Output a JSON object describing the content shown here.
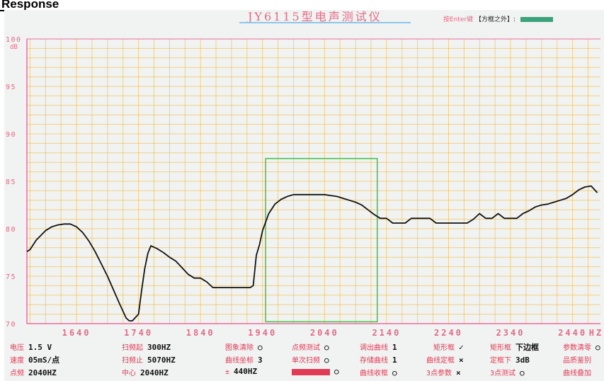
{
  "page_label": "Response",
  "instrument": {
    "title": "JY6115型电声测试仪",
    "status_hint": "按Enter键",
    "status_text": "【方框之外】:"
  },
  "chart_data": {
    "type": "line",
    "x_ticks": [
      "1640",
      "1740",
      "1840",
      "1940",
      "2040",
      "2140",
      "2240",
      "2340",
      "2440",
      "HZ"
    ],
    "y_ticks": [
      "100",
      "95",
      "90",
      "85",
      "80",
      "75",
      "70"
    ],
    "y_unit": "dB",
    "xlim": [
      1560,
      2485
    ],
    "ylim": [
      70,
      100
    ],
    "grid": true,
    "series": [
      {
        "color": "#111111",
        "x": [
          1560,
          1565,
          1575,
          1590,
          1600,
          1610,
          1620,
          1630,
          1640,
          1650,
          1660,
          1670,
          1680,
          1690,
          1700,
          1710,
          1720,
          1725,
          1730,
          1740,
          1745,
          1750,
          1755,
          1760,
          1770,
          1780,
          1790,
          1800,
          1810,
          1820,
          1830,
          1840,
          1850,
          1860,
          1870,
          1880,
          1890,
          1900,
          1910,
          1920,
          1925,
          1930,
          1935,
          1940,
          1950,
          1960,
          1970,
          1980,
          1990,
          2000,
          2010,
          2020,
          2030,
          2040,
          2050,
          2060,
          2070,
          2080,
          2090,
          2100,
          2110,
          2120,
          2130,
          2140,
          2150,
          2160,
          2170,
          2180,
          2190,
          2200,
          2210,
          2220,
          2230,
          2240,
          2250,
          2260,
          2270,
          2280,
          2290,
          2300,
          2310,
          2320,
          2330,
          2340,
          2350,
          2360,
          2370,
          2380,
          2390,
          2400,
          2410,
          2420,
          2430,
          2440,
          2450,
          2460,
          2470,
          2480
        ],
        "y": [
          77.6,
          77.8,
          78.8,
          79.8,
          80.2,
          80.4,
          80.5,
          80.5,
          80.2,
          79.6,
          78.7,
          77.6,
          76.3,
          75.0,
          73.5,
          72.0,
          70.6,
          70.3,
          70.3,
          71.0,
          73.5,
          75.8,
          77.4,
          78.2,
          77.9,
          77.5,
          77.0,
          76.6,
          75.9,
          75.2,
          74.8,
          74.8,
          74.4,
          73.8,
          73.8,
          73.8,
          73.8,
          73.8,
          73.8,
          73.8,
          74.0,
          77.2,
          78.3,
          79.8,
          81.6,
          82.6,
          83.1,
          83.4,
          83.6,
          83.6,
          83.6,
          83.6,
          83.6,
          83.6,
          83.5,
          83.4,
          83.2,
          83.0,
          82.8,
          82.5,
          82.0,
          81.5,
          81.1,
          81.1,
          80.6,
          80.6,
          80.6,
          81.1,
          81.1,
          81.1,
          81.1,
          80.6,
          80.6,
          80.6,
          80.6,
          80.6,
          80.6,
          81.0,
          81.6,
          81.1,
          81.1,
          81.6,
          81.1,
          81.1,
          81.1,
          81.6,
          81.9,
          82.3,
          82.5,
          82.6,
          82.8,
          83.0,
          83.2,
          83.6,
          84.1,
          84.4,
          84.5,
          83.8
        ]
      }
    ],
    "marker_box": {
      "x1": 1945,
      "x2": 2125,
      "y1": 70.2,
      "y2": 87.4
    }
  },
  "params": [
    [
      {
        "label": "电压",
        "value": "1.5 V"
      },
      {
        "label": "扫频起",
        "value": "300HZ"
      },
      {
        "label": "图象清除",
        "value": "○"
      },
      {
        "label": "点频测试",
        "value": "○"
      },
      {
        "label": "调出曲线",
        "value": "1"
      },
      {
        "label": "矩形框",
        "value": "✓"
      },
      {
        "label": "矩形框",
        "value": "下边框"
      },
      {
        "label": "参数清零",
        "value": "○"
      }
    ],
    [
      {
        "label": "速度",
        "value": "05mS/点"
      },
      {
        "label": "扫频止",
        "value": "5070HZ"
      },
      {
        "label": "曲线坐标",
        "value": "3"
      },
      {
        "label": "单次扫频",
        "value": "○"
      },
      {
        "label": "存储曲线",
        "value": "1"
      },
      {
        "label": "曲线定框",
        "value": "×"
      },
      {
        "label": "定框下",
        "value": "3dB"
      },
      {
        "label": "品质鉴别",
        "value": ""
      }
    ],
    [
      {
        "label": "点频",
        "value": "2040HZ"
      },
      {
        "label": "中心",
        "value": "2040HZ"
      },
      {
        "label": "±",
        "value": "440HZ"
      },
      {
        "label": "",
        "value": "○"
      },
      {
        "label": "曲线收框",
        "value": "○"
      },
      {
        "label": "3点参数",
        "value": "×"
      },
      {
        "label": "3点测试",
        "value": "○"
      },
      {
        "label": "曲线叠加",
        "value": ""
      }
    ]
  ]
}
